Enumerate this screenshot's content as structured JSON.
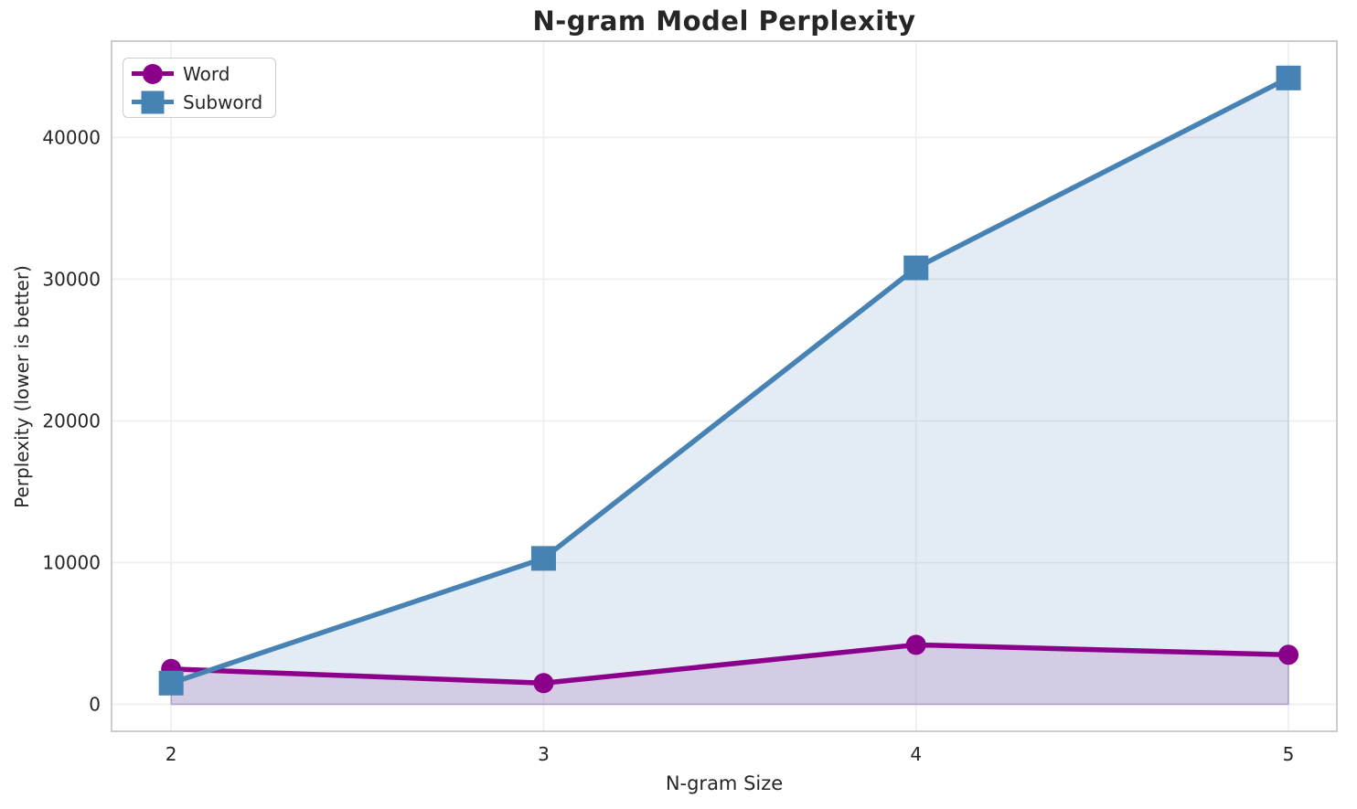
{
  "chart_data": {
    "type": "line",
    "title": "N-gram Model Perplexity",
    "xlabel": "N-gram Size",
    "ylabel": "Perplexity (lower is better)",
    "x": [
      2,
      3,
      4,
      5
    ],
    "xticks": [
      "2",
      "3",
      "4",
      "5"
    ],
    "yticks": [
      0,
      10000,
      20000,
      30000,
      40000
    ],
    "xlim": [
      1.84,
      5.13
    ],
    "ylim": [
      -1900,
      46800
    ],
    "grid": true,
    "legend_position": "upper left",
    "fill_alpha": 0.15,
    "fill_to": 0,
    "colors": {
      "grid": "#efefef",
      "spine": "#cccccc",
      "text": "#262626",
      "background": "#ffffff"
    },
    "series": [
      {
        "name": "Word",
        "marker": "circle",
        "color": "#8b008b",
        "values": [
          2500,
          1500,
          4200,
          3500
        ]
      },
      {
        "name": "Subword",
        "marker": "square",
        "color": "#4682b4",
        "values": [
          1500,
          10300,
          30800,
          44200
        ]
      }
    ]
  }
}
